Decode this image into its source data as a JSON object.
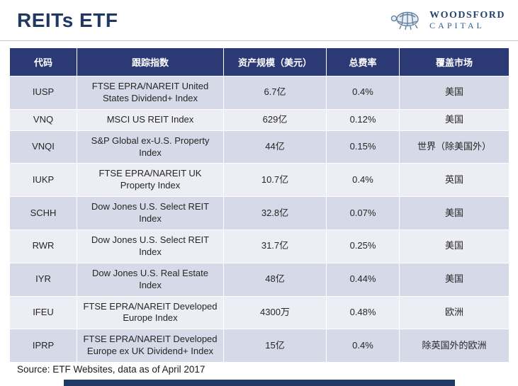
{
  "slide": {
    "title": "REITs ETF",
    "source_note": "Source: ETF Websites, data as of April 2017"
  },
  "logo": {
    "name": "WOODSFORD",
    "subname": "CAPITAL",
    "icon": "turtle-icon"
  },
  "table": {
    "headers": [
      "代码",
      "跟踪指数",
      "资产规模（美元）",
      "总费率",
      "覆盖市场"
    ],
    "column_keys": [
      "code",
      "index",
      "aum",
      "fee",
      "market"
    ],
    "rows": [
      {
        "code": "IUSP",
        "index": "FTSE EPRA/NAREIT United States Dividend+ Index",
        "aum": "6.7亿",
        "fee": "0.4%",
        "market": "美国"
      },
      {
        "code": "VNQ",
        "index": "MSCI US REIT Index",
        "aum": "629亿",
        "fee": "0.12%",
        "market": "美国"
      },
      {
        "code": "VNQI",
        "index": "S&P Global ex-U.S. Property Index",
        "aum": "44亿",
        "fee": "0.15%",
        "market": "世界（除美国外）"
      },
      {
        "code": "IUKP",
        "index": "FTSE EPRA/NAREIT UK Property Index",
        "aum": "10.7亿",
        "fee": "0.4%",
        "market": "英国"
      },
      {
        "code": "SCHH",
        "index": "Dow Jones U.S. Select REIT Index",
        "aum": "32.8亿",
        "fee": "0.07%",
        "market": "美国"
      },
      {
        "code": "RWR",
        "index": "Dow Jones U.S. Select REIT Index",
        "aum": "31.7亿",
        "fee": "0.25%",
        "market": "美国"
      },
      {
        "code": "IYR",
        "index": "Dow Jones U.S. Real Estate Index",
        "aum": "48亿",
        "fee": "0.44%",
        "market": "美国"
      },
      {
        "code": "IFEU",
        "index": "FTSE EPRA/NAREIT Developed Europe Index",
        "aum": "4300万",
        "fee": "0.48%",
        "market": "欧洲"
      },
      {
        "code": "IPRP",
        "index": "FTSE EPRA/NAREIT Developed Europe ex UK Dividend+ Index",
        "aum": "15亿",
        "fee": "0.4%",
        "market": "除英国外的欧洲"
      }
    ]
  },
  "colors": {
    "accent_navy": "#1F3864",
    "header_bg": "#2B3A74",
    "band_dark": "#D6D9E8",
    "band_light": "#EDEEF5"
  }
}
